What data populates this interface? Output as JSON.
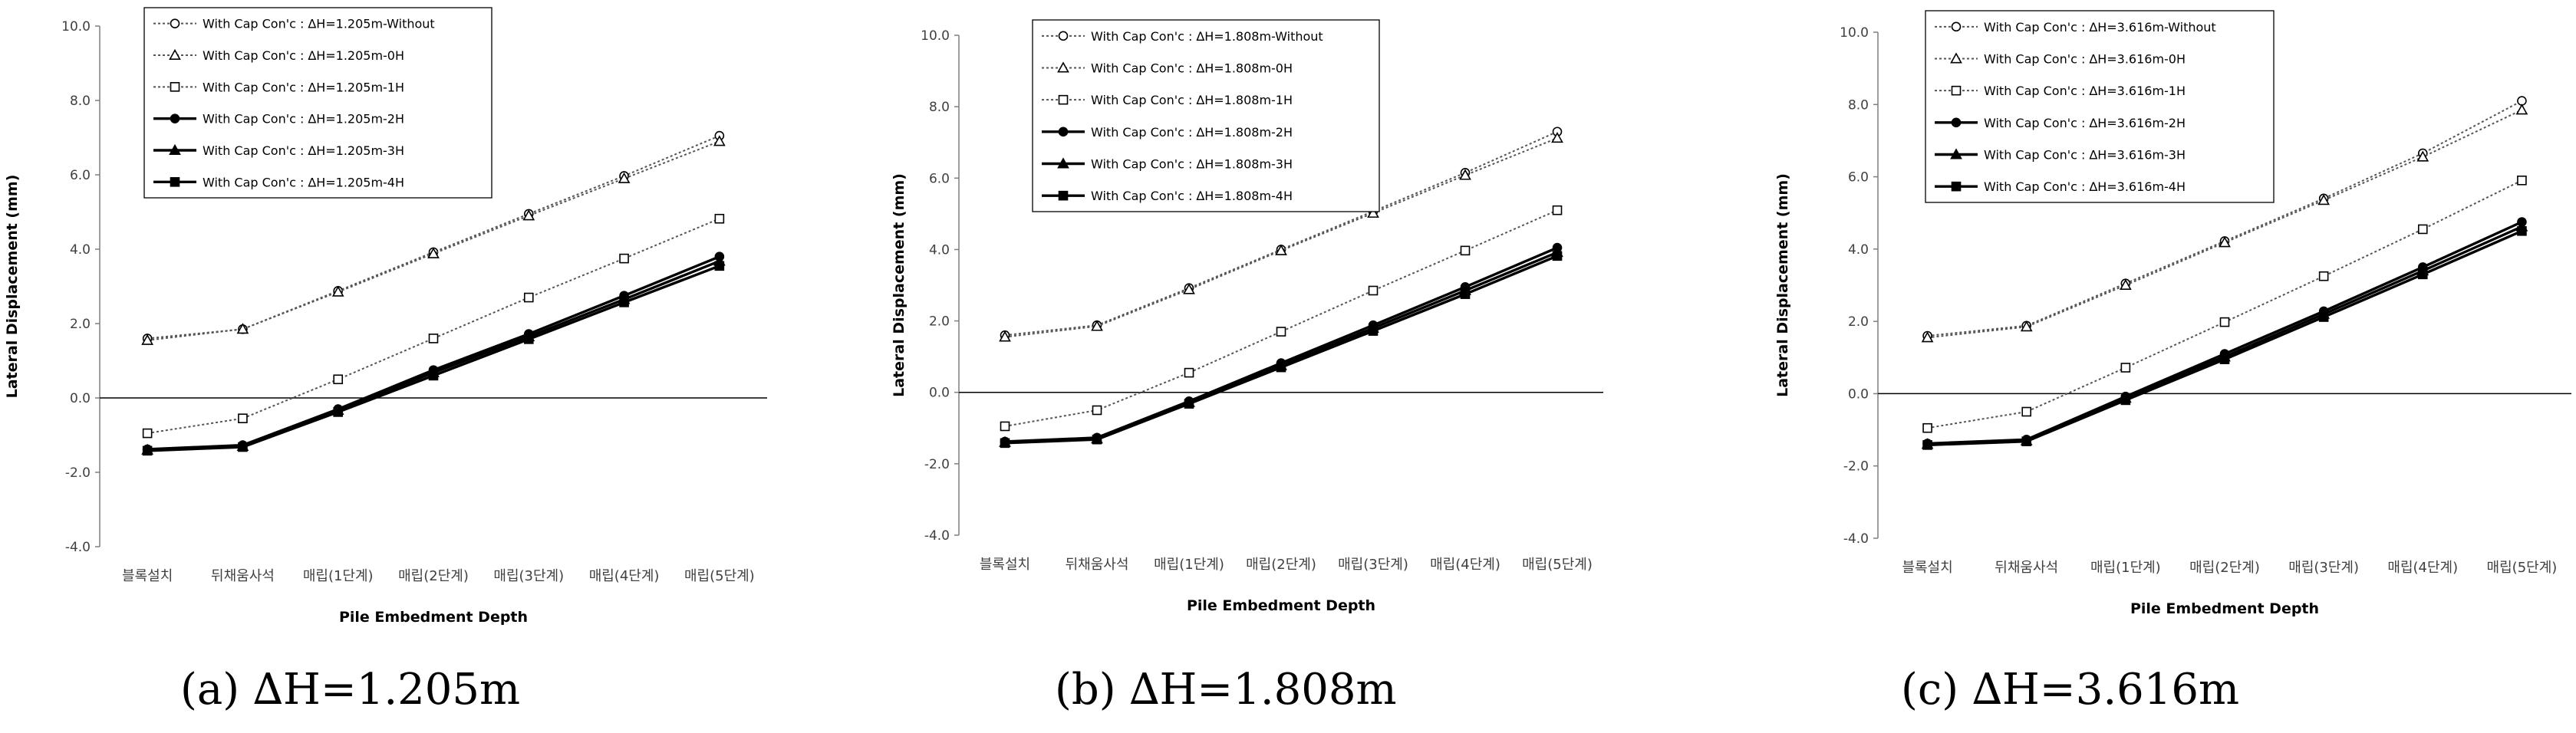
{
  "chart_data": [
    {
      "type": "line",
      "caption": "(a)  ∆H=1.205m",
      "xlabel": "Pile Embedment Depth",
      "ylabel": "Lateral Displacement (mm)",
      "categories": [
        "블록설치",
        "뒤채움사석",
        "매립(1단계)",
        "매립(2단계)",
        "매립(3단계)",
        "매립(4단계)",
        "매립(5단계)"
      ],
      "ylim": [
        -4,
        10
      ],
      "yticks": [
        "-4.0",
        "-2.0",
        "0.0",
        "2.0",
        "4.0",
        "6.0",
        "8.0",
        "10.0"
      ],
      "grid": false,
      "legend_position": "top-left",
      "series": [
        {
          "name": "With Cap Con'c : ∆H=1.205m-Without",
          "marker": "circle",
          "style": "dotted",
          "values": [
            1.6,
            1.85,
            2.88,
            3.92,
            4.95,
            5.97,
            7.05
          ]
        },
        {
          "name": "With Cap Con'c : ∆H=1.205m-0H",
          "marker": "triangle",
          "style": "dotted",
          "values": [
            1.55,
            1.85,
            2.85,
            3.88,
            4.9,
            5.9,
            6.9
          ]
        },
        {
          "name": "With Cap Con'c : ∆H=1.205m-1H",
          "marker": "square",
          "style": "dotted",
          "values": [
            -0.95,
            -0.55,
            0.5,
            1.6,
            2.7,
            3.75,
            4.82
          ]
        },
        {
          "name": "With Cap Con'c : ∆H=1.205m-2H",
          "marker": "circle-filled",
          "style": "solid",
          "values": [
            -1.38,
            -1.27,
            -0.3,
            0.75,
            1.72,
            2.75,
            3.8
          ]
        },
        {
          "name": "With Cap Con'c : ∆H=1.205m-3H",
          "marker": "triangle-filled",
          "style": "solid",
          "values": [
            -1.4,
            -1.3,
            -0.33,
            0.68,
            1.65,
            2.65,
            3.68
          ]
        },
        {
          "name": "With Cap Con'c : ∆H=1.205m-4H",
          "marker": "square-filled",
          "style": "solid",
          "values": [
            -1.42,
            -1.32,
            -0.38,
            0.6,
            1.58,
            2.57,
            3.55
          ]
        }
      ]
    },
    {
      "type": "line",
      "caption": "(b)  ∆H=1.808m",
      "xlabel": "Pile Embedment Depth",
      "ylabel": "Lateral Displacement (mm)",
      "categories": [
        "블록설치",
        "뒤채움사석",
        "매립(1단계)",
        "매립(2단계)",
        "매립(3단계)",
        "매립(4단계)",
        "매립(5단계)"
      ],
      "ylim": [
        -4,
        10
      ],
      "yticks": [
        "-4.0",
        "-2.0",
        "0.0",
        "2.0",
        "4.0",
        "6.0",
        "8.0",
        "10.0"
      ],
      "grid": false,
      "legend_position": "top-left",
      "series": [
        {
          "name": "With Cap Con'c : ∆H=1.808m-Without",
          "marker": "circle",
          "style": "dotted",
          "values": [
            1.6,
            1.88,
            2.92,
            4.0,
            5.07,
            6.15,
            7.3
          ]
        },
        {
          "name": "With Cap Con'c : ∆H=1.808m-0H",
          "marker": "triangle",
          "style": "dotted",
          "values": [
            1.55,
            1.85,
            2.88,
            3.97,
            5.02,
            6.08,
            7.12
          ]
        },
        {
          "name": "With Cap Con'c : ∆H=1.808m-1H",
          "marker": "square",
          "style": "dotted",
          "values": [
            -0.95,
            -0.5,
            0.55,
            1.7,
            2.85,
            3.97,
            5.1
          ]
        },
        {
          "name": "With Cap Con'c : ∆H=1.808m-2H",
          "marker": "circle-filled",
          "style": "solid",
          "values": [
            -1.38,
            -1.27,
            -0.25,
            0.82,
            1.88,
            2.95,
            4.05
          ]
        },
        {
          "name": "With Cap Con'c : ∆H=1.808m-3H",
          "marker": "triangle-filled",
          "style": "solid",
          "values": [
            -1.4,
            -1.3,
            -0.28,
            0.75,
            1.8,
            2.85,
            3.92
          ]
        },
        {
          "name": "With Cap Con'c : ∆H=1.808m-4H",
          "marker": "square-filled",
          "style": "solid",
          "values": [
            -1.42,
            -1.32,
            -0.32,
            0.7,
            1.72,
            2.75,
            3.82
          ]
        }
      ]
    },
    {
      "type": "line",
      "caption": "(c) ∆H=3.616m",
      "xlabel": "Pile Embedment Depth",
      "ylabel": "Lateral Displacement (mm)",
      "categories": [
        "블록설치",
        "뒤채움사석",
        "매립(1단계)",
        "매립(2단계)",
        "매립(3단계)",
        "매립(4단계)",
        "매립(5단계)"
      ],
      "ylim": [
        -4,
        10
      ],
      "yticks": [
        "-4.0",
        "-2.0",
        "0.0",
        "2.0",
        "4.0",
        "6.0",
        "8.0",
        "10.0"
      ],
      "grid": false,
      "legend_position": "top-left",
      "series": [
        {
          "name": "With Cap Con'c : ∆H=3.616m-Without",
          "marker": "circle",
          "style": "dotted",
          "values": [
            1.6,
            1.88,
            3.05,
            4.22,
            5.4,
            6.65,
            8.1
          ]
        },
        {
          "name": "With Cap Con'c : ∆H=3.616m-0H",
          "marker": "triangle",
          "style": "dotted",
          "values": [
            1.55,
            1.85,
            3.0,
            4.18,
            5.35,
            6.55,
            7.85
          ]
        },
        {
          "name": "With Cap Con'c : ∆H=3.616m-1H",
          "marker": "square",
          "style": "dotted",
          "values": [
            -0.95,
            -0.5,
            0.72,
            1.98,
            3.25,
            4.55,
            5.9
          ]
        },
        {
          "name": "With Cap Con'c : ∆H=3.616m-2H",
          "marker": "circle-filled",
          "style": "solid",
          "values": [
            -1.38,
            -1.27,
            -0.08,
            1.1,
            2.28,
            3.5,
            4.75
          ]
        },
        {
          "name": "With Cap Con'c : ∆H=3.616m-3H",
          "marker": "triangle-filled",
          "style": "solid",
          "values": [
            -1.4,
            -1.3,
            -0.12,
            1.02,
            2.2,
            3.4,
            4.62
          ]
        },
        {
          "name": "With Cap Con'c : ∆H=3.616m-4H",
          "marker": "square-filled",
          "style": "solid",
          "values": [
            -1.42,
            -1.32,
            -0.18,
            0.95,
            2.12,
            3.3,
            4.5
          ]
        }
      ]
    }
  ]
}
